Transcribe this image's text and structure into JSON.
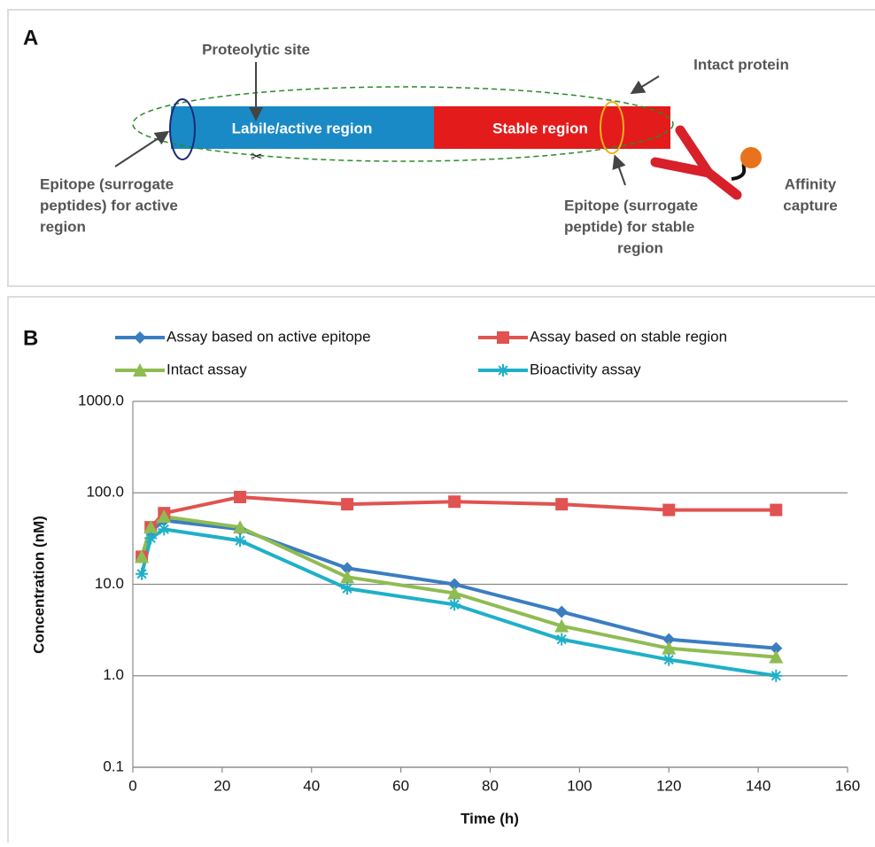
{
  "panel_a": {
    "label": "A",
    "labile_region": "Labile/active region",
    "stable_region": "Stable region",
    "proteolytic_site": "Proteolytic site",
    "intact_protein": "Intact protein",
    "active_epitope": [
      "Epitope (surrogate",
      "peptides) for active",
      "region"
    ],
    "stable_epitope": [
      "Epitope (surrogate",
      "peptide) for stable",
      "region"
    ],
    "affinity_capture": [
      "Affinity",
      "capture"
    ]
  },
  "chart_data": {
    "type": "line",
    "panel_label": "B",
    "x_label": "Time (h)",
    "y_label": "Concentration (nM)",
    "x": [
      2,
      4,
      7,
      24,
      48,
      72,
      96,
      120,
      144
    ],
    "series": [
      {
        "name": "Assay based on active epitope",
        "color": "#3b7dc1",
        "marker": "diamond",
        "values": [
          20,
          38,
          50,
          40,
          15,
          10,
          5,
          2.5,
          2
        ]
      },
      {
        "name": "Assay based on stable region",
        "color": "#e05350",
        "marker": "square",
        "values": [
          20,
          42,
          60,
          90,
          75,
          80,
          75,
          65,
          65
        ]
      },
      {
        "name": "Intact assay",
        "color": "#8fbc52",
        "marker": "triangle",
        "values": [
          20,
          42,
          55,
          42,
          12,
          8,
          3.5,
          2,
          1.6
        ]
      },
      {
        "name": "Bioactivity assay",
        "color": "#1fb0c8",
        "marker": "star",
        "values": [
          13,
          32,
          40,
          30,
          9,
          6,
          2.5,
          1.5,
          1
        ]
      }
    ],
    "log_y": true,
    "grid": true,
    "xlim": [
      0,
      160
    ],
    "xticks": [
      0,
      20,
      40,
      60,
      80,
      100,
      120,
      140,
      160
    ],
    "ylim": [
      0.1,
      1000
    ],
    "yticks": [
      0.1,
      {
        "value": 1,
        "label": "1.0"
      },
      {
        "value": 10,
        "label": "10.0"
      },
      {
        "value": 100,
        "label": "100.0"
      },
      {
        "value": 1000,
        "label": "1000.0"
      }
    ]
  }
}
